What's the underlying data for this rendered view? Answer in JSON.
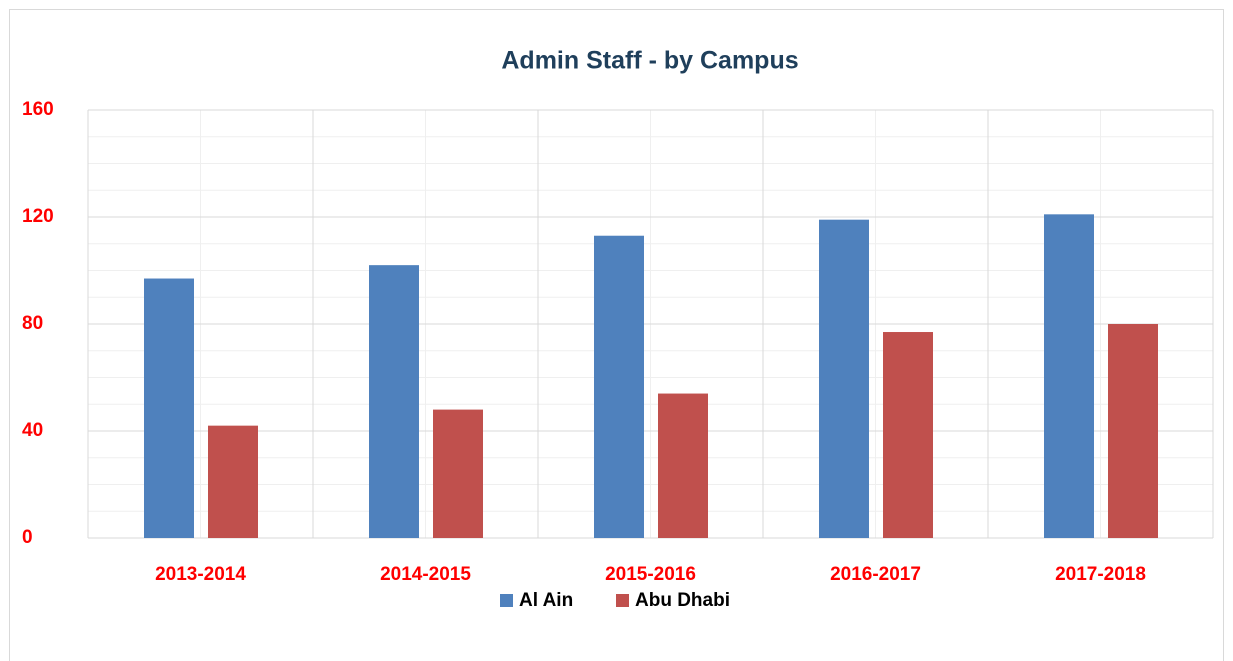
{
  "chart_data": {
    "type": "bar",
    "title": "Admin Staff - by Campus",
    "categories": [
      "2013-2014",
      "2014-2015",
      "2015-2016",
      "2016-2017",
      "2017-2018"
    ],
    "series": [
      {
        "name": "Al Ain",
        "color": "#4f81bd",
        "values": [
          97,
          102,
          113,
          119,
          121
        ]
      },
      {
        "name": "Abu Dhabi",
        "color": "#c0504d",
        "values": [
          42,
          48,
          54,
          77,
          80
        ]
      }
    ],
    "ylim": [
      0,
      160
    ],
    "yticks": [
      0,
      40,
      80,
      120,
      160
    ],
    "yminorticks": [
      10,
      20,
      30,
      50,
      60,
      70,
      90,
      100,
      110,
      130,
      140,
      150
    ],
    "grid": true,
    "legend": "bottom"
  }
}
